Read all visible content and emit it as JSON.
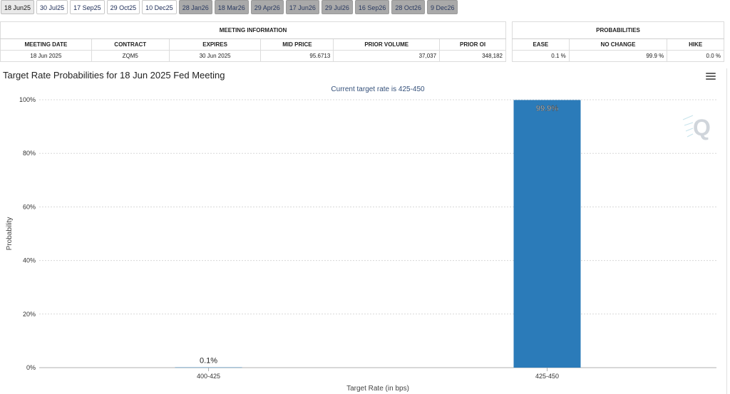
{
  "tabs": [
    {
      "label": "18 Jun25",
      "state": "active"
    },
    {
      "label": "30 Jul25",
      "state": "normal"
    },
    {
      "label": "17 Sep25",
      "state": "normal"
    },
    {
      "label": "29 Oct25",
      "state": "normal"
    },
    {
      "label": "10 Dec25",
      "state": "normal"
    },
    {
      "label": "28 Jan26",
      "state": "future"
    },
    {
      "label": "18 Mar26",
      "state": "future"
    },
    {
      "label": "29 Apr26",
      "state": "future"
    },
    {
      "label": "17 Jun26",
      "state": "future"
    },
    {
      "label": "29 Jul26",
      "state": "future"
    },
    {
      "label": "16 Sep26",
      "state": "future"
    },
    {
      "label": "28 Oct26",
      "state": "future"
    },
    {
      "label": "9 Dec26",
      "state": "future"
    }
  ],
  "meeting_info": {
    "group_label": "MEETING INFORMATION",
    "headers": [
      "MEETING DATE",
      "CONTRACT",
      "EXPIRES",
      "MID PRICE",
      "PRIOR VOLUME",
      "PRIOR OI"
    ],
    "row": [
      "18 Jun 2025",
      "ZQM5",
      "30 Jun 2025",
      "95.6713",
      "37,037",
      "348,182"
    ]
  },
  "probabilities": {
    "group_label": "PROBABILITIES",
    "headers": [
      "EASE",
      "NO CHANGE",
      "HIKE"
    ],
    "row": [
      "0.1 %",
      "99.9 %",
      "0.0 %"
    ]
  },
  "chart_title": "Target Rate Probabilities for 18 Jun 2025 Fed Meeting",
  "menu_icon": "hamburger-menu-icon",
  "watermark_icon": "q-logo-icon",
  "colors": {
    "bar": "#2b7bb9",
    "grid": "#d8d8d8"
  },
  "chart_data": {
    "type": "bar",
    "title": "",
    "subtitle": "Current target rate is 425-450",
    "xlabel": "Target Rate (in bps)",
    "ylabel": "Probability",
    "categories": [
      "400-425",
      "425-450"
    ],
    "values": [
      0.1,
      99.9
    ],
    "data_labels": [
      "0.1%",
      "99.9%"
    ],
    "ylim": [
      0,
      100
    ],
    "yticks": [
      0,
      20,
      40,
      60,
      80,
      100
    ],
    "ytick_labels": [
      "0%",
      "20%",
      "40%",
      "60%",
      "80%",
      "100%"
    ],
    "grid": true,
    "legend": "none"
  }
}
